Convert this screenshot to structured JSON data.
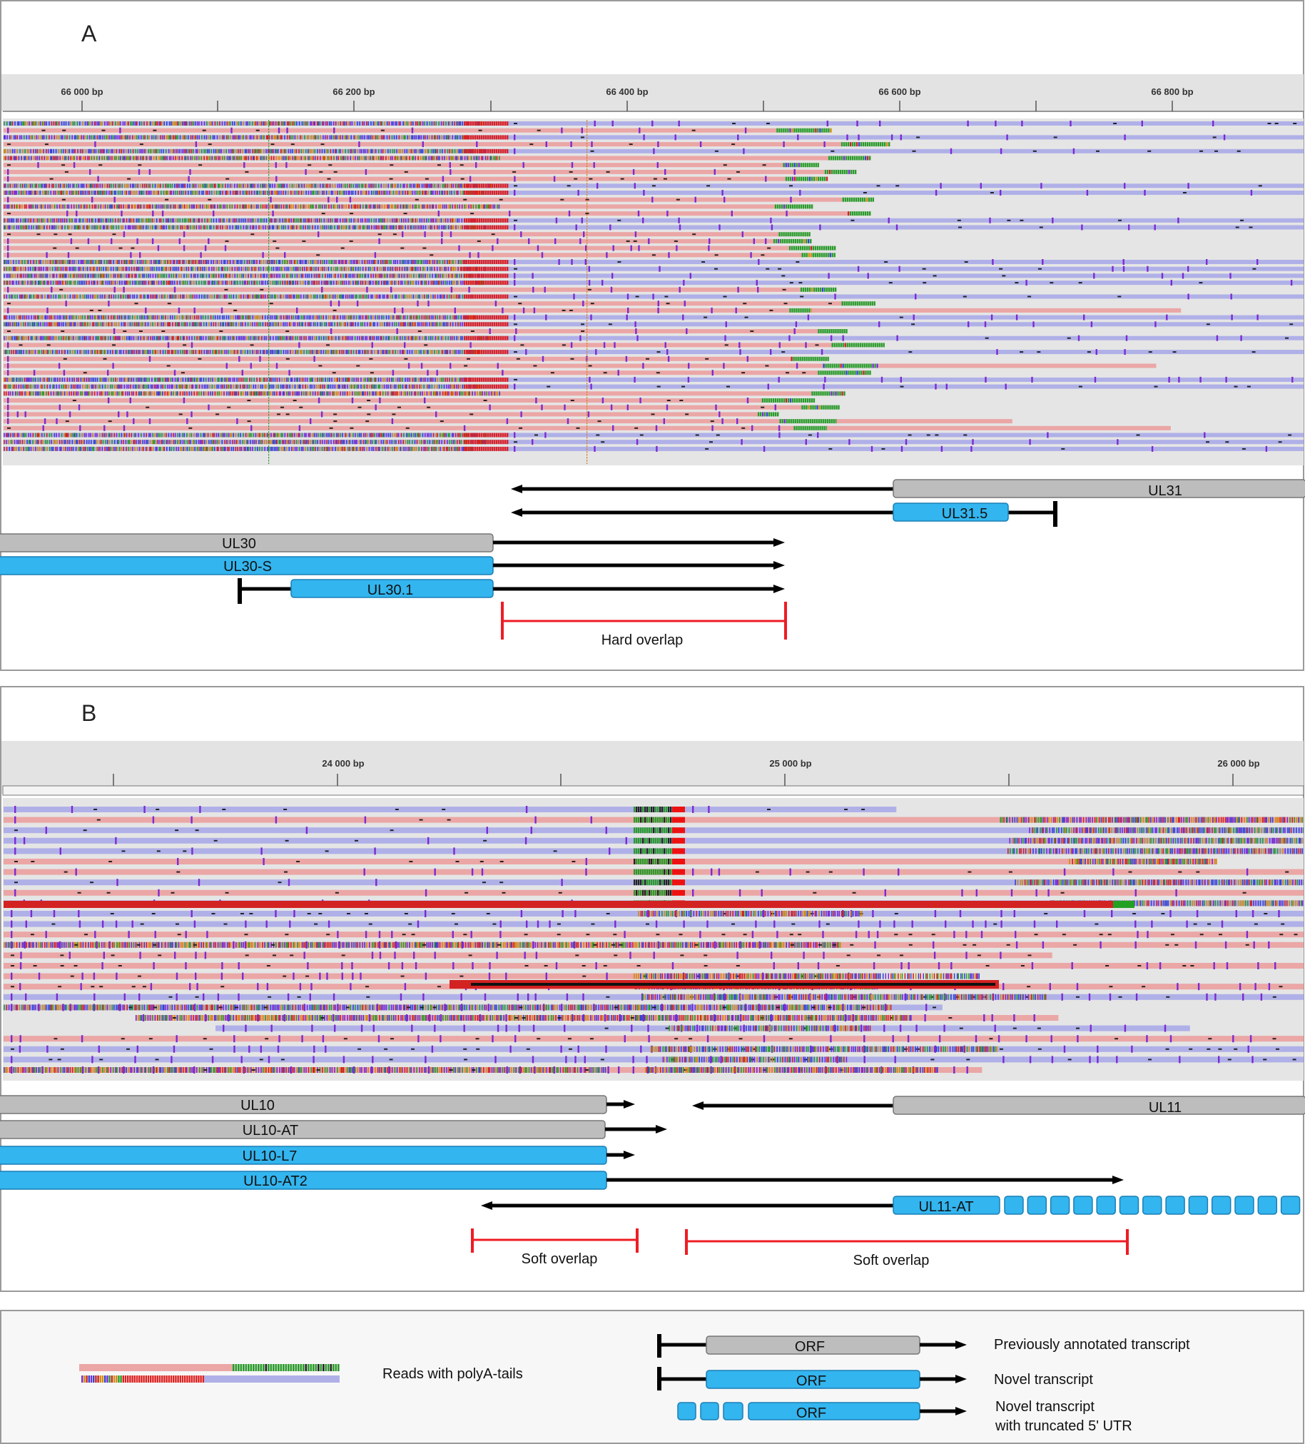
{
  "panel_a": {
    "label": "A",
    "ticks": [
      "66 000 bp",
      "66 200 bp",
      "66 400 bp",
      "66 600 bp",
      "66 800 bp"
    ],
    "transcripts": [
      {
        "name": "UL31",
        "kind": "previous",
        "direction": "left"
      },
      {
        "name": "UL31.5",
        "kind": "novel",
        "direction": "left"
      },
      {
        "name": "UL30",
        "kind": "previous",
        "direction": "right"
      },
      {
        "name": "UL30-S",
        "kind": "novel",
        "direction": "right"
      },
      {
        "name": "UL30.1",
        "kind": "novel",
        "direction": "right"
      }
    ],
    "overlaps": [
      {
        "label": "Hard overlap"
      }
    ]
  },
  "panel_b": {
    "label": "B",
    "ticks": [
      "24 000 bp",
      "25 000 bp",
      "26 000 bp"
    ],
    "transcripts": [
      {
        "name": "UL10",
        "kind": "previous",
        "direction": "right"
      },
      {
        "name": "UL11",
        "kind": "previous",
        "direction": "left"
      },
      {
        "name": "UL10-AT",
        "kind": "previous",
        "direction": "right"
      },
      {
        "name": "UL10-L7",
        "kind": "novel",
        "direction": "right"
      },
      {
        "name": "UL10-AT2",
        "kind": "novel",
        "direction": "right"
      },
      {
        "name": "UL11-AT",
        "kind": "novel-truncated",
        "direction": "left"
      }
    ],
    "overlaps": [
      {
        "label": "Soft overlap"
      },
      {
        "label": "Soft overlap"
      }
    ]
  },
  "legend": {
    "reads_label": "Reads with polyA-tails",
    "orf_label": "ORF",
    "items": [
      {
        "kind": "previous",
        "label": "Previously annotated transcript"
      },
      {
        "kind": "novel",
        "label": "Novel transcript"
      },
      {
        "kind": "novel-truncated",
        "label": "Novel transcript",
        "label2": "with truncated 5' UTR"
      }
    ]
  },
  "colors": {
    "previous_fill": "#bdbdbd",
    "novel_fill": "#33b5ef",
    "overlap": "#ee1c24",
    "forward_read": "#eba6a6",
    "reverse_read": "#b0b0e8",
    "track_bg": "#e5e5e5"
  }
}
